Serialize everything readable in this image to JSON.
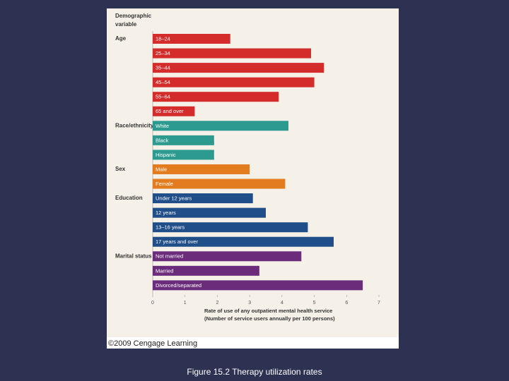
{
  "chart_data": {
    "type": "bar",
    "orientation": "horizontal",
    "y_header": [
      "Demographic",
      "variable"
    ],
    "groups": [
      {
        "name": "Age",
        "color": "#d42b2b",
        "categories": [
          "18–24",
          "25–34",
          "35–44",
          "45–54",
          "55–64",
          "65 and over"
        ],
        "values": [
          2.4,
          4.9,
          5.3,
          5.0,
          3.9,
          1.3
        ]
      },
      {
        "name": "Race/ethnicity",
        "color": "#2c9a8e",
        "categories": [
          "White",
          "Black",
          "Hispanic"
        ],
        "values": [
          4.2,
          1.9,
          1.9
        ]
      },
      {
        "name": "Sex",
        "color": "#e27c1e",
        "categories": [
          "Male",
          "Female"
        ],
        "values": [
          3.0,
          4.1
        ]
      },
      {
        "name": "Education",
        "color": "#1f4e89",
        "categories": [
          "Under 12 years",
          "12 years",
          "13–16 years",
          "17 years and over"
        ],
        "values": [
          3.1,
          3.5,
          4.8,
          5.6
        ]
      },
      {
        "name": "Marital status",
        "color": "#6a2c7b",
        "categories": [
          "Not married",
          "Married",
          "Divorced/separated"
        ],
        "values": [
          4.6,
          3.3,
          6.5
        ]
      }
    ],
    "xlim": [
      0,
      7
    ],
    "xticks": [
      0,
      1,
      2,
      3,
      4,
      5,
      6,
      7
    ],
    "xlabel": [
      "Rate of use of any outpatient mental health service",
      "(Number of service users annually per 100 persons)"
    ]
  },
  "copyright": "©2009 Cengage Learning",
  "caption": "Figure 15.2  Therapy utilization rates"
}
